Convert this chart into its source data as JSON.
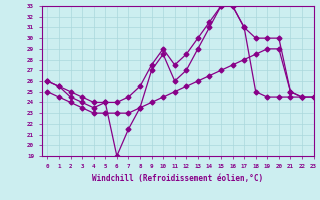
{
  "xlabel": "Windchill (Refroidissement éolien,°C)",
  "xlim": [
    -0.5,
    23
  ],
  "ylim": [
    19,
    33
  ],
  "xticks": [
    0,
    1,
    2,
    3,
    4,
    5,
    6,
    7,
    8,
    9,
    10,
    11,
    12,
    13,
    14,
    15,
    16,
    17,
    18,
    19,
    20,
    21,
    22,
    23
  ],
  "yticks": [
    19,
    20,
    21,
    22,
    23,
    24,
    25,
    26,
    27,
    28,
    29,
    30,
    31,
    32,
    33
  ],
  "background_color": "#cceef0",
  "line_color": "#880088",
  "grid_color": "#aad8dc",
  "series": {
    "windchill": {
      "x": [
        0,
        1,
        2,
        3,
        4,
        5,
        6,
        7,
        8,
        9,
        10,
        11,
        12,
        13,
        14,
        15,
        16,
        17,
        18,
        19,
        20,
        21,
        22,
        23
      ],
      "y": [
        26,
        25.5,
        24.5,
        24,
        23.5,
        24,
        19,
        21.5,
        23.5,
        27,
        28.5,
        26,
        27,
        29,
        31,
        33,
        33,
        31,
        25,
        24.5,
        24.5,
        24.5,
        24.5,
        null
      ]
    },
    "min": {
      "x": [
        0,
        1,
        2,
        3,
        4,
        5,
        6,
        7,
        8,
        9,
        10,
        11,
        12,
        13,
        14,
        15,
        16,
        17,
        18,
        19,
        20,
        21,
        22,
        23
      ],
      "y": [
        25,
        24.5,
        24,
        23.5,
        23,
        23,
        23,
        23,
        23.5,
        24,
        24.5,
        25,
        25.5,
        26,
        26.5,
        27,
        27.5,
        28,
        28.5,
        29,
        29,
        25,
        24.5,
        24.5
      ]
    },
    "max": {
      "x": [
        0,
        1,
        2,
        3,
        4,
        5,
        6,
        7,
        8,
        9,
        10,
        11,
        12,
        13,
        14,
        15,
        16,
        17,
        18,
        19,
        20,
        21,
        22,
        23
      ],
      "y": [
        26,
        25.5,
        25,
        24.5,
        24,
        24,
        24,
        24.5,
        25.5,
        27.5,
        29,
        27.5,
        28.5,
        30,
        31.5,
        33,
        33,
        31,
        30,
        30,
        30,
        25,
        24.5,
        24.5
      ]
    }
  }
}
